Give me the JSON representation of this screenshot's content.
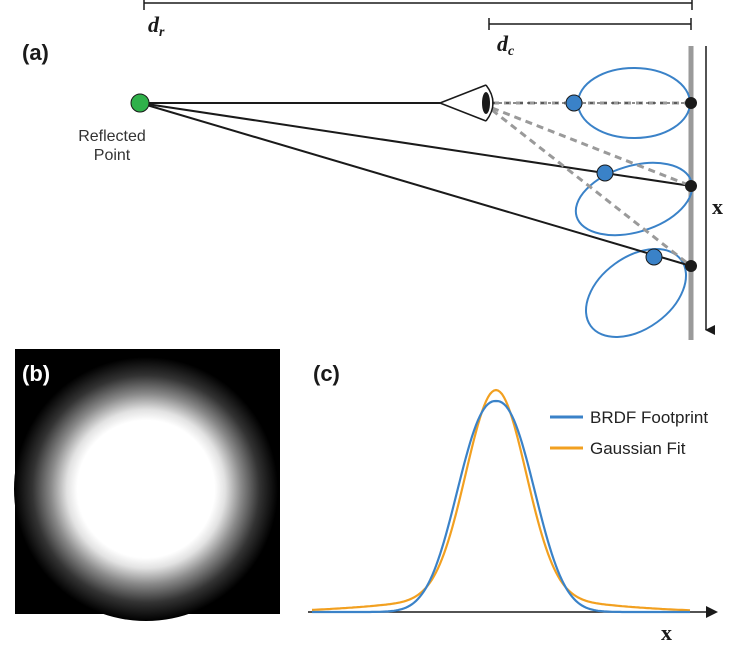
{
  "panel_a": {
    "label": "(a)",
    "d_r": {
      "main": "d",
      "sub": "r"
    },
    "d_c": {
      "main": "d",
      "sub": "c"
    },
    "reflected_point_line1": "Reflected",
    "reflected_point_line2": "Point",
    "axis_label": "x",
    "icons": {
      "eye": "eye-icon",
      "reflected_point": "green-point-icon"
    },
    "colors": {
      "lobe": "#3a82c8",
      "point_blue": "#3a82c8",
      "point_green": "#2fb14a",
      "wall": "#9a9a9a",
      "ray": "#1a1a1a",
      "dashed": "#9a9a9a"
    }
  },
  "panel_b": {
    "label": "(b)"
  },
  "panel_c": {
    "label": "(c)",
    "axis_label": "x",
    "legend": [
      {
        "name": "BRDF Footprint",
        "color": "#3a82c8"
      },
      {
        "name": "Gaussian Fit",
        "color": "#f2a020"
      }
    ]
  }
}
